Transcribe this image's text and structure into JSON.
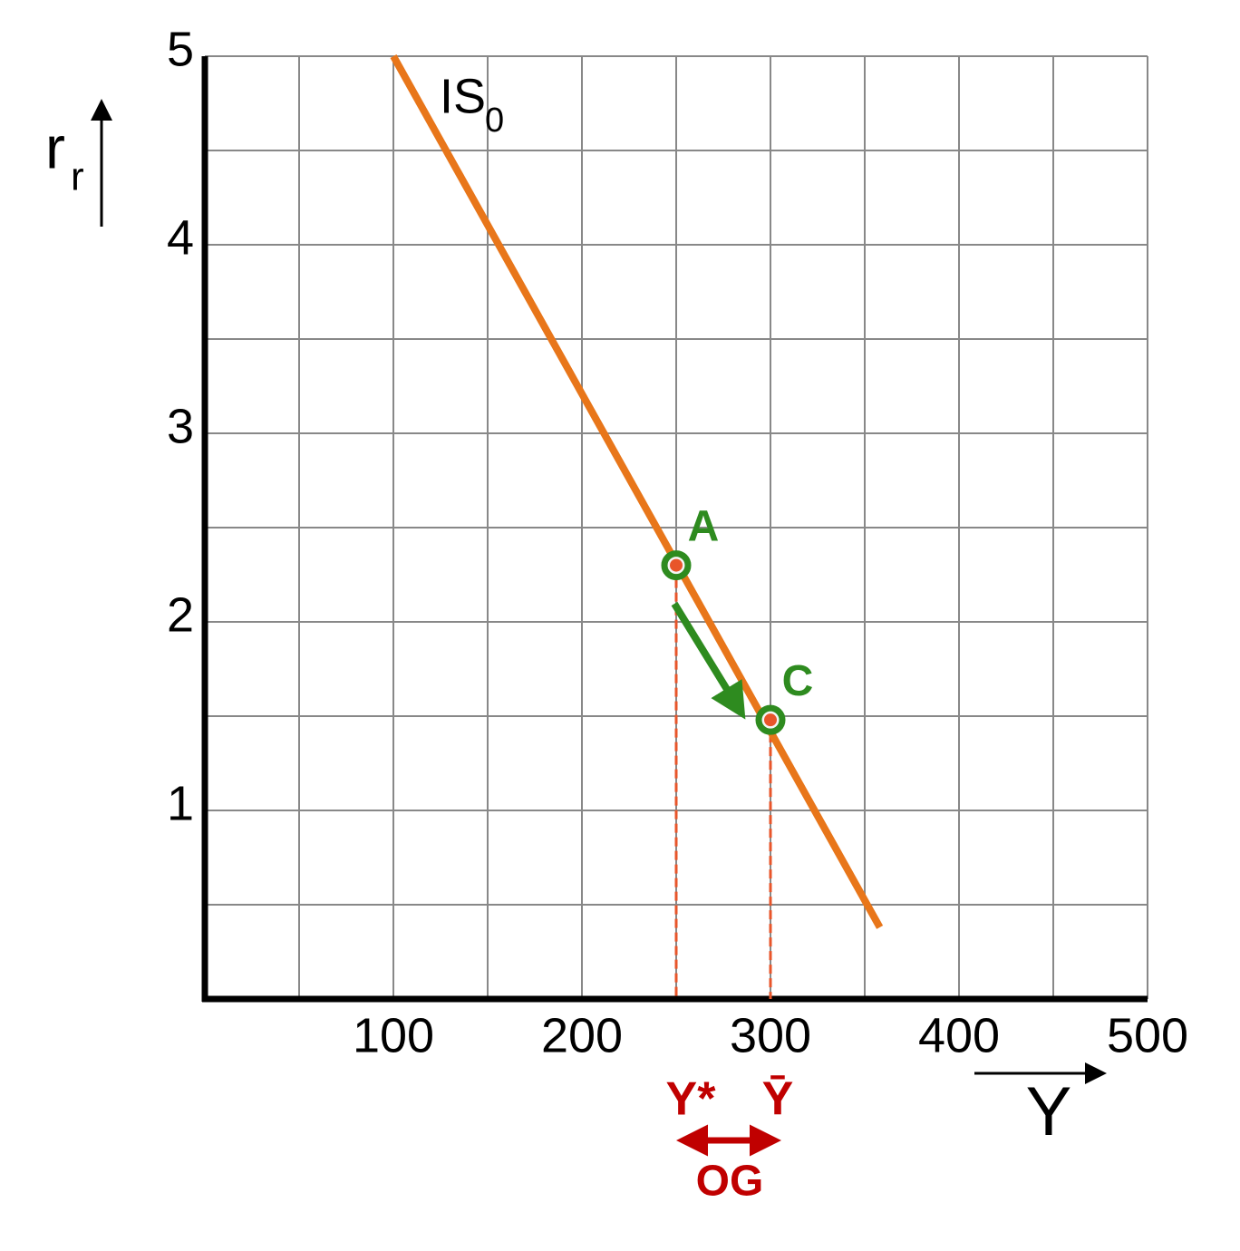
{
  "chart_data": {
    "type": "line",
    "series": [
      {
        "name": "IS",
        "name_sub": "0",
        "color": "#e8761a",
        "x": [
          100,
          358
        ],
        "values": [
          5,
          0.38
        ]
      }
    ],
    "points": [
      {
        "label": "A",
        "x": 250,
        "y": 2.3
      },
      {
        "label": "C",
        "x": 300,
        "y": 1.48
      }
    ],
    "point_color": "#2e8b1f",
    "dash_color": "#e8552a",
    "x_marker_labels": [
      "Y*",
      "Ȳ"
    ],
    "gap_label": "OG",
    "marker_color": "#c00000",
    "xlabel": "Y",
    "ylabel": "r",
    "ylabel_sub": "r",
    "xlim": [
      0,
      500
    ],
    "ylim": [
      0,
      5
    ],
    "xticks": [
      100,
      200,
      300,
      400,
      500
    ],
    "yticks": [
      1,
      2,
      3,
      4,
      5
    ],
    "xminor": [
      50,
      150,
      250,
      350,
      450
    ],
    "yminor": [
      0.5,
      1.5,
      2.5,
      3.5,
      4.5
    ],
    "grid": true
  }
}
